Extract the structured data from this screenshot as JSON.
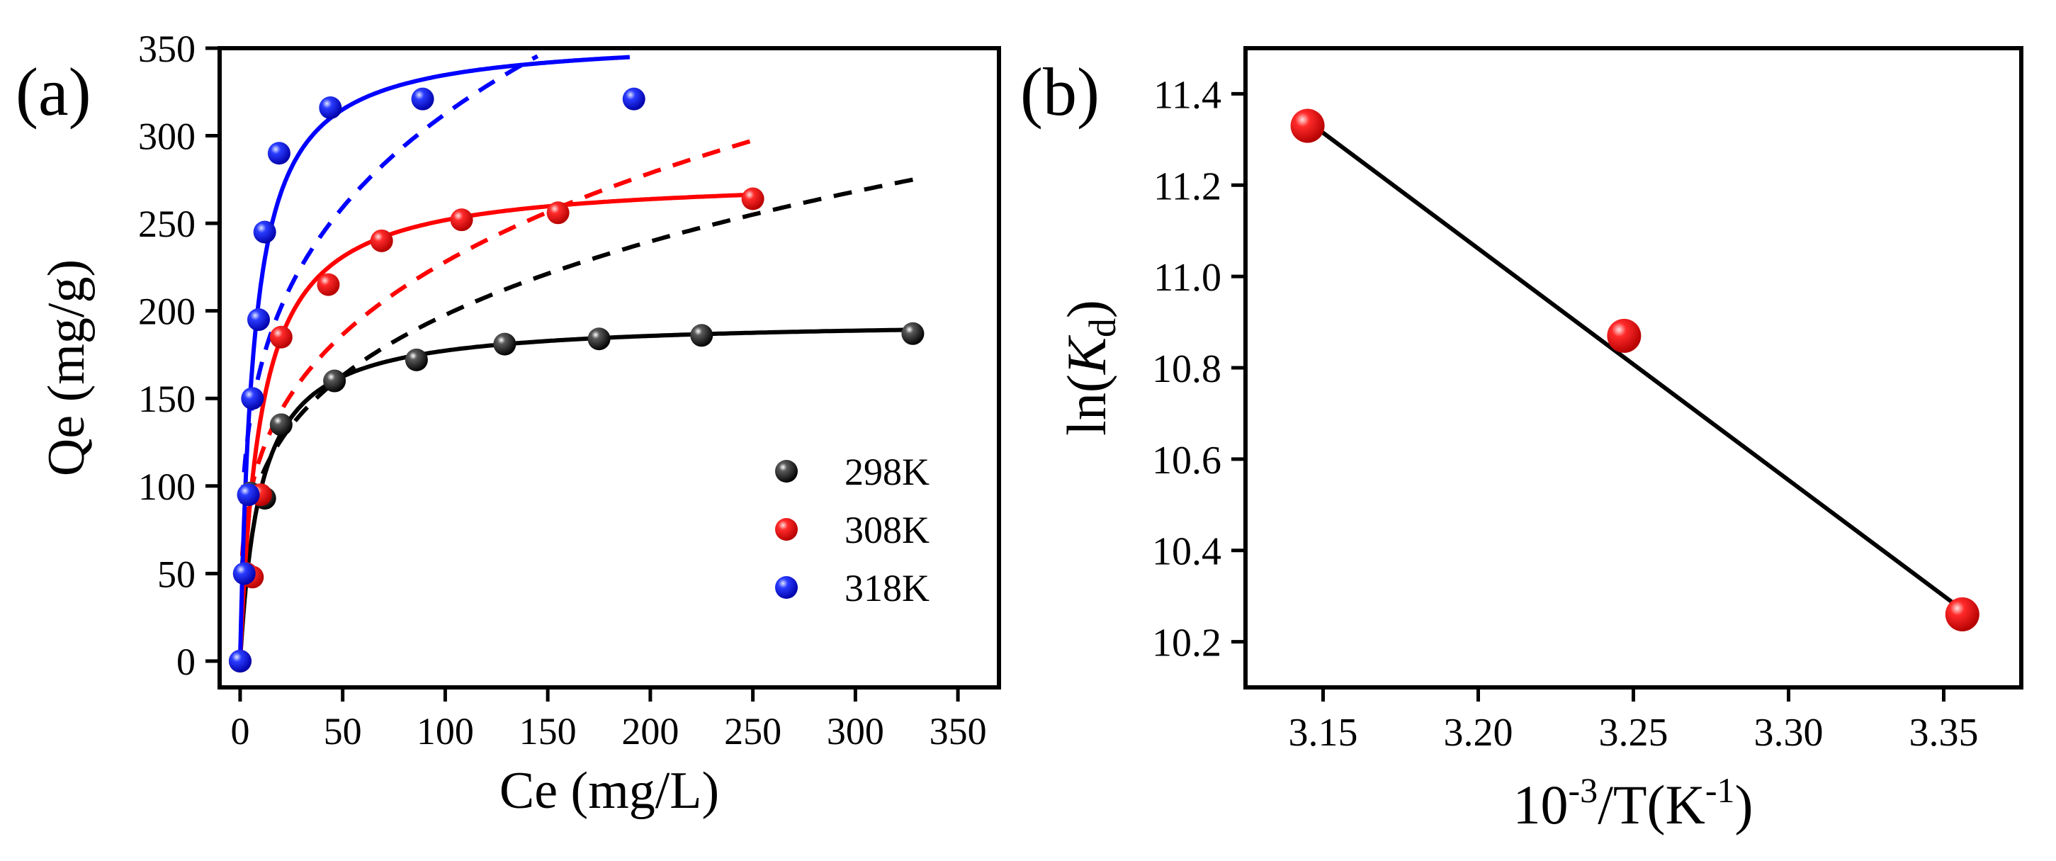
{
  "panels": {
    "a": {
      "label": "(a)"
    },
    "b": {
      "label": "(b)"
    }
  },
  "chart_data": [
    {
      "type": "scatter",
      "panel": "(a)",
      "xlabel": "Ce (mg/L)",
      "ylabel": "Qe (mg/g)",
      "xlim": [
        -10,
        370
      ],
      "ylim": [
        -15,
        350
      ],
      "xticks": [
        "0",
        "50",
        "100",
        "150",
        "200",
        "250",
        "300",
        "350"
      ],
      "xtick_values": [
        0,
        50,
        100,
        150,
        200,
        250,
        300,
        350
      ],
      "yticks": [
        "0",
        "50",
        "100",
        "150",
        "200",
        "250",
        "300",
        "350"
      ],
      "ytick_values": [
        0,
        50,
        100,
        150,
        200,
        250,
        300,
        350
      ],
      "grid": false,
      "legend_position": "bottom-right",
      "series": [
        {
          "name": "298K",
          "color": "#000000",
          "x": [
            0,
            3,
            5,
            12,
            20,
            46,
            86,
            129,
            175,
            225,
            328
          ],
          "y": [
            0,
            50,
            96,
            93,
            135,
            160,
            172,
            181,
            184,
            186,
            187
          ],
          "fit_solid": {
            "qmax": 195,
            "K": 0.1,
            "xmax": 328
          },
          "fit_dashed": {
            "K": 55,
            "n": 3.6,
            "xmax": 328
          }
        },
        {
          "name": "308K",
          "color": "#ff0000",
          "x": [
            0,
            3,
            6,
            10,
            20,
            43,
            69,
            108,
            155,
            250
          ],
          "y": [
            0,
            50,
            48,
            95,
            185,
            215,
            240,
            252,
            256,
            264
          ],
          "fit_solid": {
            "qmax": 277,
            "K": 0.1,
            "xmax": 250
          },
          "fit_dashed": {
            "K": 60,
            "n": 3.45,
            "xmax": 252
          }
        },
        {
          "name": "318K",
          "color": "#0000ff",
          "x": [
            0,
            2,
            4,
            6,
            9,
            12,
            19,
            44,
            89,
            192
          ],
          "y": [
            0,
            50,
            95,
            150,
            195,
            245,
            290,
            316,
            321,
            321
          ],
          "fit_solid": {
            "qmax": 357,
            "K": 0.15,
            "xmax": 190
          },
          "fit_dashed": {
            "K": 90,
            "n": 3.7,
            "xmax": 145
          }
        }
      ]
    },
    {
      "type": "scatter",
      "panel": "(b)",
      "xlabel": "10-3/T(K-1)",
      "ylabel": "ln(Kd)",
      "xlim": [
        3.125,
        3.375
      ],
      "ylim": [
        10.1,
        11.5
      ],
      "xticks": [
        "3.15",
        "3.20",
        "3.25",
        "3.30",
        "3.35"
      ],
      "xtick_values": [
        3.15,
        3.2,
        3.25,
        3.3,
        3.35
      ],
      "yticks": [
        "10.2",
        "10.4",
        "10.6",
        "10.8",
        "11.0",
        "11.2",
        "11.4"
      ],
      "ytick_values": [
        10.2,
        10.4,
        10.6,
        10.8,
        11.0,
        11.2,
        11.4
      ],
      "grid": false,
      "series": [
        {
          "color": "#ff0000",
          "x": [
            3.145,
            3.247,
            3.356
          ],
          "y": [
            11.33,
            10.87,
            10.26
          ]
        }
      ],
      "fit_line": {
        "x": [
          3.145,
          3.356
        ],
        "y": [
          11.34,
          10.27
        ],
        "color": "#000000"
      }
    }
  ]
}
